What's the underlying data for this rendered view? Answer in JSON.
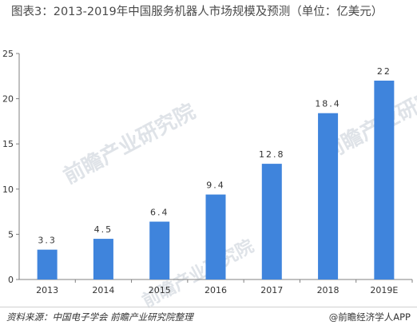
{
  "chart_data": {
    "type": "bar",
    "title": "图表3：2013-2019年中国服务机器人市场规模及预测（单位：亿美元）",
    "categories": [
      "2013",
      "2014",
      "2015",
      "2016",
      "2017",
      "2018",
      "2019E"
    ],
    "values": [
      3.3,
      4.5,
      6.4,
      9.4,
      12.8,
      18.4,
      22
    ],
    "data_labels": [
      "3.3",
      "4.5",
      "6.4",
      "9.4",
      "12.8",
      "18.4",
      "22"
    ],
    "ylim": [
      0,
      25
    ],
    "yticks": [
      "0",
      "5",
      "10",
      "15",
      "20",
      "25"
    ],
    "bar_color": "#3f84dc",
    "grid": false,
    "legend": "none"
  },
  "footer": {
    "source": "资料来源：中国电子学会 前瞻产业研究院整理",
    "brand": "@前瞻经济学人APP"
  },
  "watermark": "前瞻产业研究院"
}
